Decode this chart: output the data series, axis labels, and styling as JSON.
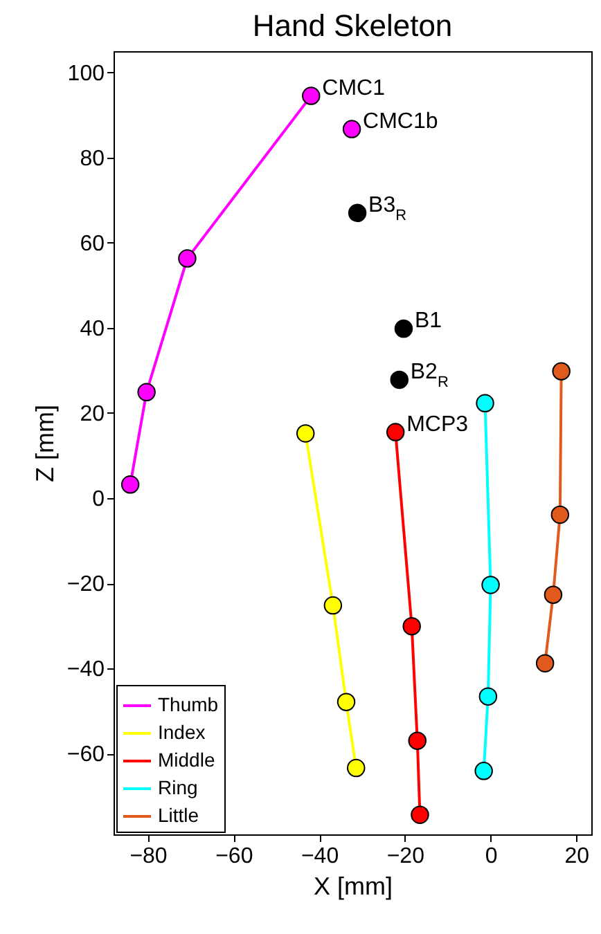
{
  "chart_data": {
    "type": "line",
    "title": "Hand Skeleton",
    "xlabel": "X [mm]",
    "ylabel": "Z [mm]",
    "xlim": [
      -88,
      23.5
    ],
    "xticks": [
      -80,
      -60,
      -40,
      -20,
      0,
      20
    ],
    "ylim": [
      -79,
      105
    ],
    "yticks": [
      -60,
      -40,
      -20,
      0,
      20,
      40,
      60,
      80,
      100
    ],
    "grid": false,
    "legend": "bottom left",
    "marker": "circle",
    "line_style": "solid",
    "series": [
      {
        "name": "Thumb",
        "color": "#ff00ff",
        "x": [
          -41.9,
          -70.8,
          -80.3,
          -84.1
        ],
        "values": [
          94.5,
          56.3,
          24.9,
          3.2
        ]
      },
      {
        "name": "Index",
        "color": "#ffff00",
        "x": [
          -43.2,
          -36.8,
          -33.7,
          -31.4
        ],
        "values": [
          15.2,
          -25.2,
          -47.9,
          -63.4
        ]
      },
      {
        "name": "Middle",
        "color": "#ff0000",
        "x": [
          -22.2,
          -18.4,
          -17.1,
          -16.5
        ],
        "values": [
          15.5,
          -30.1,
          -57.0,
          -74.4
        ]
      },
      {
        "name": "Ring",
        "color": "#00ffff",
        "x": [
          -1.3,
          0.0,
          -0.6,
          -1.6
        ],
        "values": [
          22.3,
          -20.4,
          -46.6,
          -64.1
        ]
      },
      {
        "name": "Little",
        "color": "#e05a1e",
        "x": [
          16.5,
          16.2,
          14.6,
          12.7
        ],
        "values": [
          29.8,
          -3.9,
          -22.7,
          -38.8
        ]
      },
      {
        "type": "scatter",
        "x": [
          -32.4,
          -31.1,
          -20.3,
          -21.3
        ],
        "values": [
          86.7,
          67.0,
          39.8,
          27.8
        ],
        "colors": [
          "#ff00ff",
          "#000000",
          "#000000",
          "#000000"
        ]
      }
    ],
    "annotations": [
      {
        "text": "CMC1",
        "x": -41.9,
        "y": 94.5
      },
      {
        "text": "CMC1b",
        "x": -32.4,
        "y": 86.7
      },
      {
        "text": "B3$_{R}$",
        "x": -31.1,
        "y": 67.0
      },
      {
        "text": "B1",
        "x": -20.3,
        "y": 39.8
      },
      {
        "text": "B2$_{R}$",
        "x": -21.3,
        "y": 27.8
      },
      {
        "text": "MCP3",
        "x": -22.2,
        "y": 15.5
      }
    ]
  }
}
